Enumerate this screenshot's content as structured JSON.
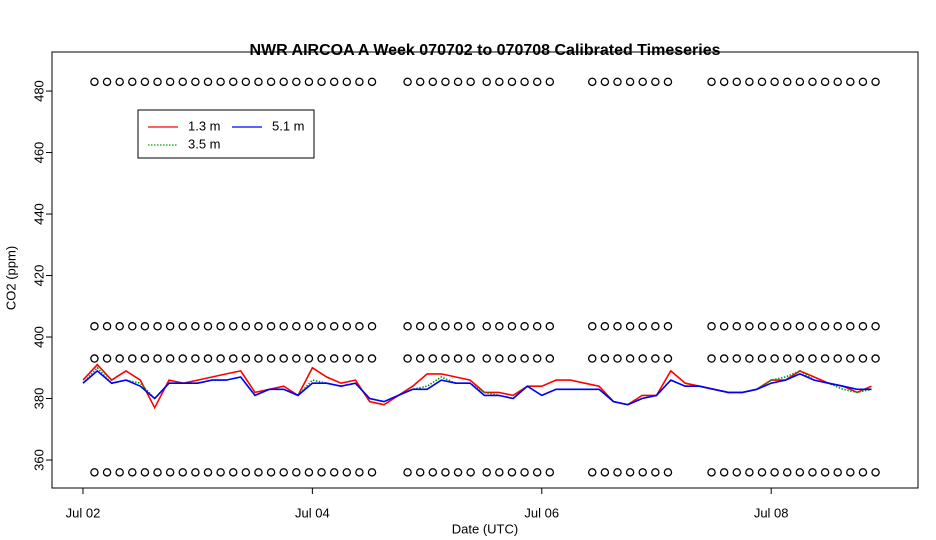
{
  "chart_data": {
    "type": "line",
    "title": "NWR AIRCOA A  Week 070702 to 070708  Calibrated Timeseries",
    "x_label": "Date (UTC)",
    "y_label": "CO2 (ppm)",
    "xlim": [
      1.73,
      9.28
    ],
    "ylim": [
      350.9,
      492.7
    ],
    "xticks": [
      {
        "value": 2,
        "label": "Jul 02"
      },
      {
        "value": 4,
        "label": "Jul 04"
      },
      {
        "value": 6,
        "label": "Jul 06"
      },
      {
        "value": 8,
        "label": "Jul 08"
      }
    ],
    "yticks": [
      360,
      380,
      400,
      420,
      440,
      460,
      480
    ],
    "grid": false,
    "legend": "top-left",
    "x": [
      2.0,
      2.125,
      2.25,
      2.375,
      2.5,
      2.625,
      2.75,
      2.875,
      3.0,
      3.125,
      3.25,
      3.375,
      3.5,
      3.625,
      3.75,
      3.875,
      4.0,
      4.125,
      4.25,
      4.375,
      4.5,
      4.625,
      4.75,
      4.875,
      5.0,
      5.125,
      5.25,
      5.375,
      5.5,
      5.625,
      5.75,
      5.875,
      6.0,
      6.125,
      6.25,
      6.375,
      6.5,
      6.625,
      6.75,
      6.875,
      7.0,
      7.125,
      7.25,
      7.375,
      7.5,
      7.625,
      7.75,
      7.875,
      8.0,
      8.125,
      8.25,
      8.375,
      8.5,
      8.625,
      8.75,
      8.875
    ],
    "series": [
      {
        "name": "1.3 m",
        "color": "#ff0000",
        "linestyle": "solid",
        "values": [
          386,
          391,
          386,
          389,
          386,
          377,
          386,
          385,
          386,
          387,
          388,
          389,
          382,
          383,
          384,
          381,
          390,
          387,
          385,
          386,
          379,
          378,
          381,
          384,
          388,
          388,
          387,
          386,
          382,
          382,
          381,
          384,
          384,
          386,
          386,
          385,
          384,
          379,
          378,
          381,
          381,
          389,
          385,
          384,
          383,
          382,
          382,
          383,
          386,
          386,
          389,
          387,
          385,
          384,
          382,
          384
        ]
      },
      {
        "name": "3.5 m",
        "color": "#00a000",
        "linestyle": "dotted",
        "values": [
          385,
          390,
          385,
          386,
          385,
          380,
          385,
          385,
          385,
          386,
          386,
          387,
          381,
          383,
          383,
          381,
          386,
          385,
          384,
          385,
          380,
          379,
          381,
          383,
          384,
          387,
          385,
          385,
          382,
          381,
          380,
          384,
          381,
          383,
          383,
          383,
          383,
          379,
          378,
          380,
          381,
          386,
          384,
          384,
          383,
          382,
          382,
          383,
          386,
          387,
          389,
          386,
          385,
          383,
          382,
          383
        ]
      },
      {
        "name": "5.1 m",
        "color": "#0000ff",
        "linestyle": "solid",
        "values": [
          385,
          389,
          385,
          386,
          384,
          380,
          385,
          385,
          385,
          386,
          386,
          387,
          381,
          383,
          383,
          381,
          385,
          385,
          384,
          385,
          380,
          379,
          381,
          383,
          383,
          386,
          385,
          385,
          381,
          381,
          380,
          384,
          381,
          383,
          383,
          383,
          383,
          379,
          378,
          380,
          381,
          386,
          384,
          384,
          383,
          382,
          382,
          383,
          385,
          386,
          388,
          386,
          385,
          384,
          383,
          383
        ]
      }
    ],
    "calibration": {
      "type": "scatter",
      "color": "#000000",
      "x": [
        2.1,
        2.21,
        2.32,
        2.43,
        2.54,
        2.65,
        2.76,
        2.87,
        2.98,
        3.09,
        3.2,
        3.31,
        3.42,
        3.53,
        3.64,
        3.75,
        3.86,
        3.97,
        4.08,
        4.19,
        4.3,
        4.41,
        4.52,
        4.83,
        4.94,
        5.05,
        5.16,
        5.27,
        5.38,
        5.52,
        5.63,
        5.74,
        5.85,
        5.96,
        6.07,
        6.44,
        6.55,
        6.66,
        6.77,
        6.88,
        6.99,
        7.1,
        7.48,
        7.59,
        7.7,
        7.81,
        7.92,
        8.03,
        8.14,
        8.25,
        8.36,
        8.47,
        8.58,
        8.69,
        8.8,
        8.91
      ],
      "series": [
        {
          "values": [
            483,
            483,
            483,
            483,
            483,
            483,
            483,
            483,
            483,
            483,
            483,
            483,
            483,
            483,
            483,
            483,
            483,
            483,
            483,
            483,
            483,
            483,
            483,
            483,
            483,
            483,
            483,
            483,
            483,
            483,
            483,
            483,
            483,
            483,
            483,
            483,
            483,
            483,
            483,
            483,
            483,
            483,
            483,
            483,
            483,
            483,
            483,
            483,
            483,
            483,
            483,
            483,
            483,
            483,
            483,
            483
          ]
        },
        {
          "values": [
            403.5,
            403.5,
            403.5,
            403.5,
            403.5,
            403.5,
            403.5,
            403.5,
            403.5,
            403.5,
            403.5,
            403.5,
            403.5,
            403.5,
            403.5,
            403.5,
            403.5,
            403.5,
            403.5,
            403.5,
            403.5,
            403.5,
            403.5,
            403.5,
            403.5,
            403.5,
            403.5,
            403.5,
            403.5,
            403.5,
            403.5,
            403.5,
            403.5,
            403.5,
            403.5,
            403.5,
            403.5,
            403.5,
            403.5,
            403.5,
            403.5,
            403.5,
            403.5,
            403.5,
            403.5,
            403.5,
            403.5,
            403.5,
            403.5,
            403.5,
            403.5,
            403.5,
            403.5,
            403.5,
            403.5,
            403.5
          ]
        },
        {
          "values": [
            393,
            393,
            393,
            393,
            393,
            393,
            393,
            393,
            393,
            393,
            393,
            393,
            393,
            393,
            393,
            393,
            393,
            393,
            393,
            393,
            393,
            393,
            393,
            393,
            393,
            393,
            393,
            393,
            393,
            393,
            393,
            393,
            393,
            393,
            393,
            393,
            393,
            393,
            393,
            393,
            393,
            393,
            393,
            393,
            393,
            393,
            393,
            393,
            393,
            393,
            393,
            393,
            393,
            393,
            393,
            393
          ]
        },
        {
          "values": [
            356,
            356,
            356,
            356,
            356,
            356,
            356,
            356,
            356,
            356,
            356,
            356,
            356,
            356,
            356,
            356,
            356,
            356,
            356,
            356,
            356,
            356,
            356,
            356,
            356,
            356,
            356,
            356,
            356,
            356,
            356,
            356,
            356,
            356,
            356,
            356,
            356,
            356,
            356,
            356,
            356,
            356,
            356,
            356,
            356,
            356,
            356,
            356,
            356,
            356,
            356,
            356,
            356,
            356,
            356,
            356
          ]
        }
      ]
    }
  }
}
